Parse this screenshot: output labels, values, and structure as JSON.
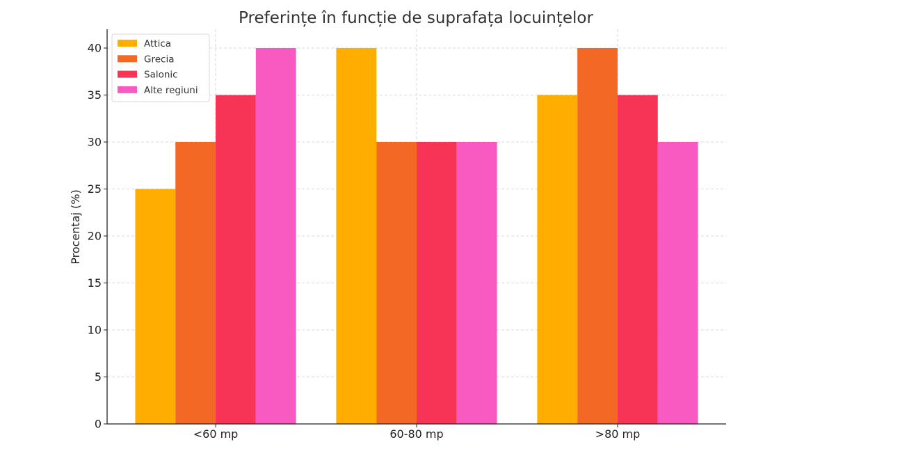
{
  "chart_data": {
    "type": "bar",
    "title": "Preferințe în funcție de suprafața locuințelor",
    "xlabel": "",
    "ylabel": "Procentaj (%)",
    "categories": [
      "<60 mp",
      "60-80 mp",
      ">80 mp"
    ],
    "series": [
      {
        "name": "Attica",
        "values": [
          25,
          40,
          35
        ],
        "color": "#FFAE00"
      },
      {
        "name": "Grecia",
        "values": [
          30,
          30,
          40
        ],
        "color": "#F36825"
      },
      {
        "name": "Salonic",
        "values": [
          35,
          30,
          35
        ],
        "color": "#F73456"
      },
      {
        "name": "Alte regiuni",
        "values": [
          40,
          30,
          30
        ],
        "color": "#F85AC1"
      }
    ],
    "ylim": [
      0,
      42
    ],
    "yticks": [
      0,
      5,
      10,
      15,
      20,
      25,
      30,
      35,
      40
    ],
    "grid": true,
    "legend_position": "top-left"
  }
}
